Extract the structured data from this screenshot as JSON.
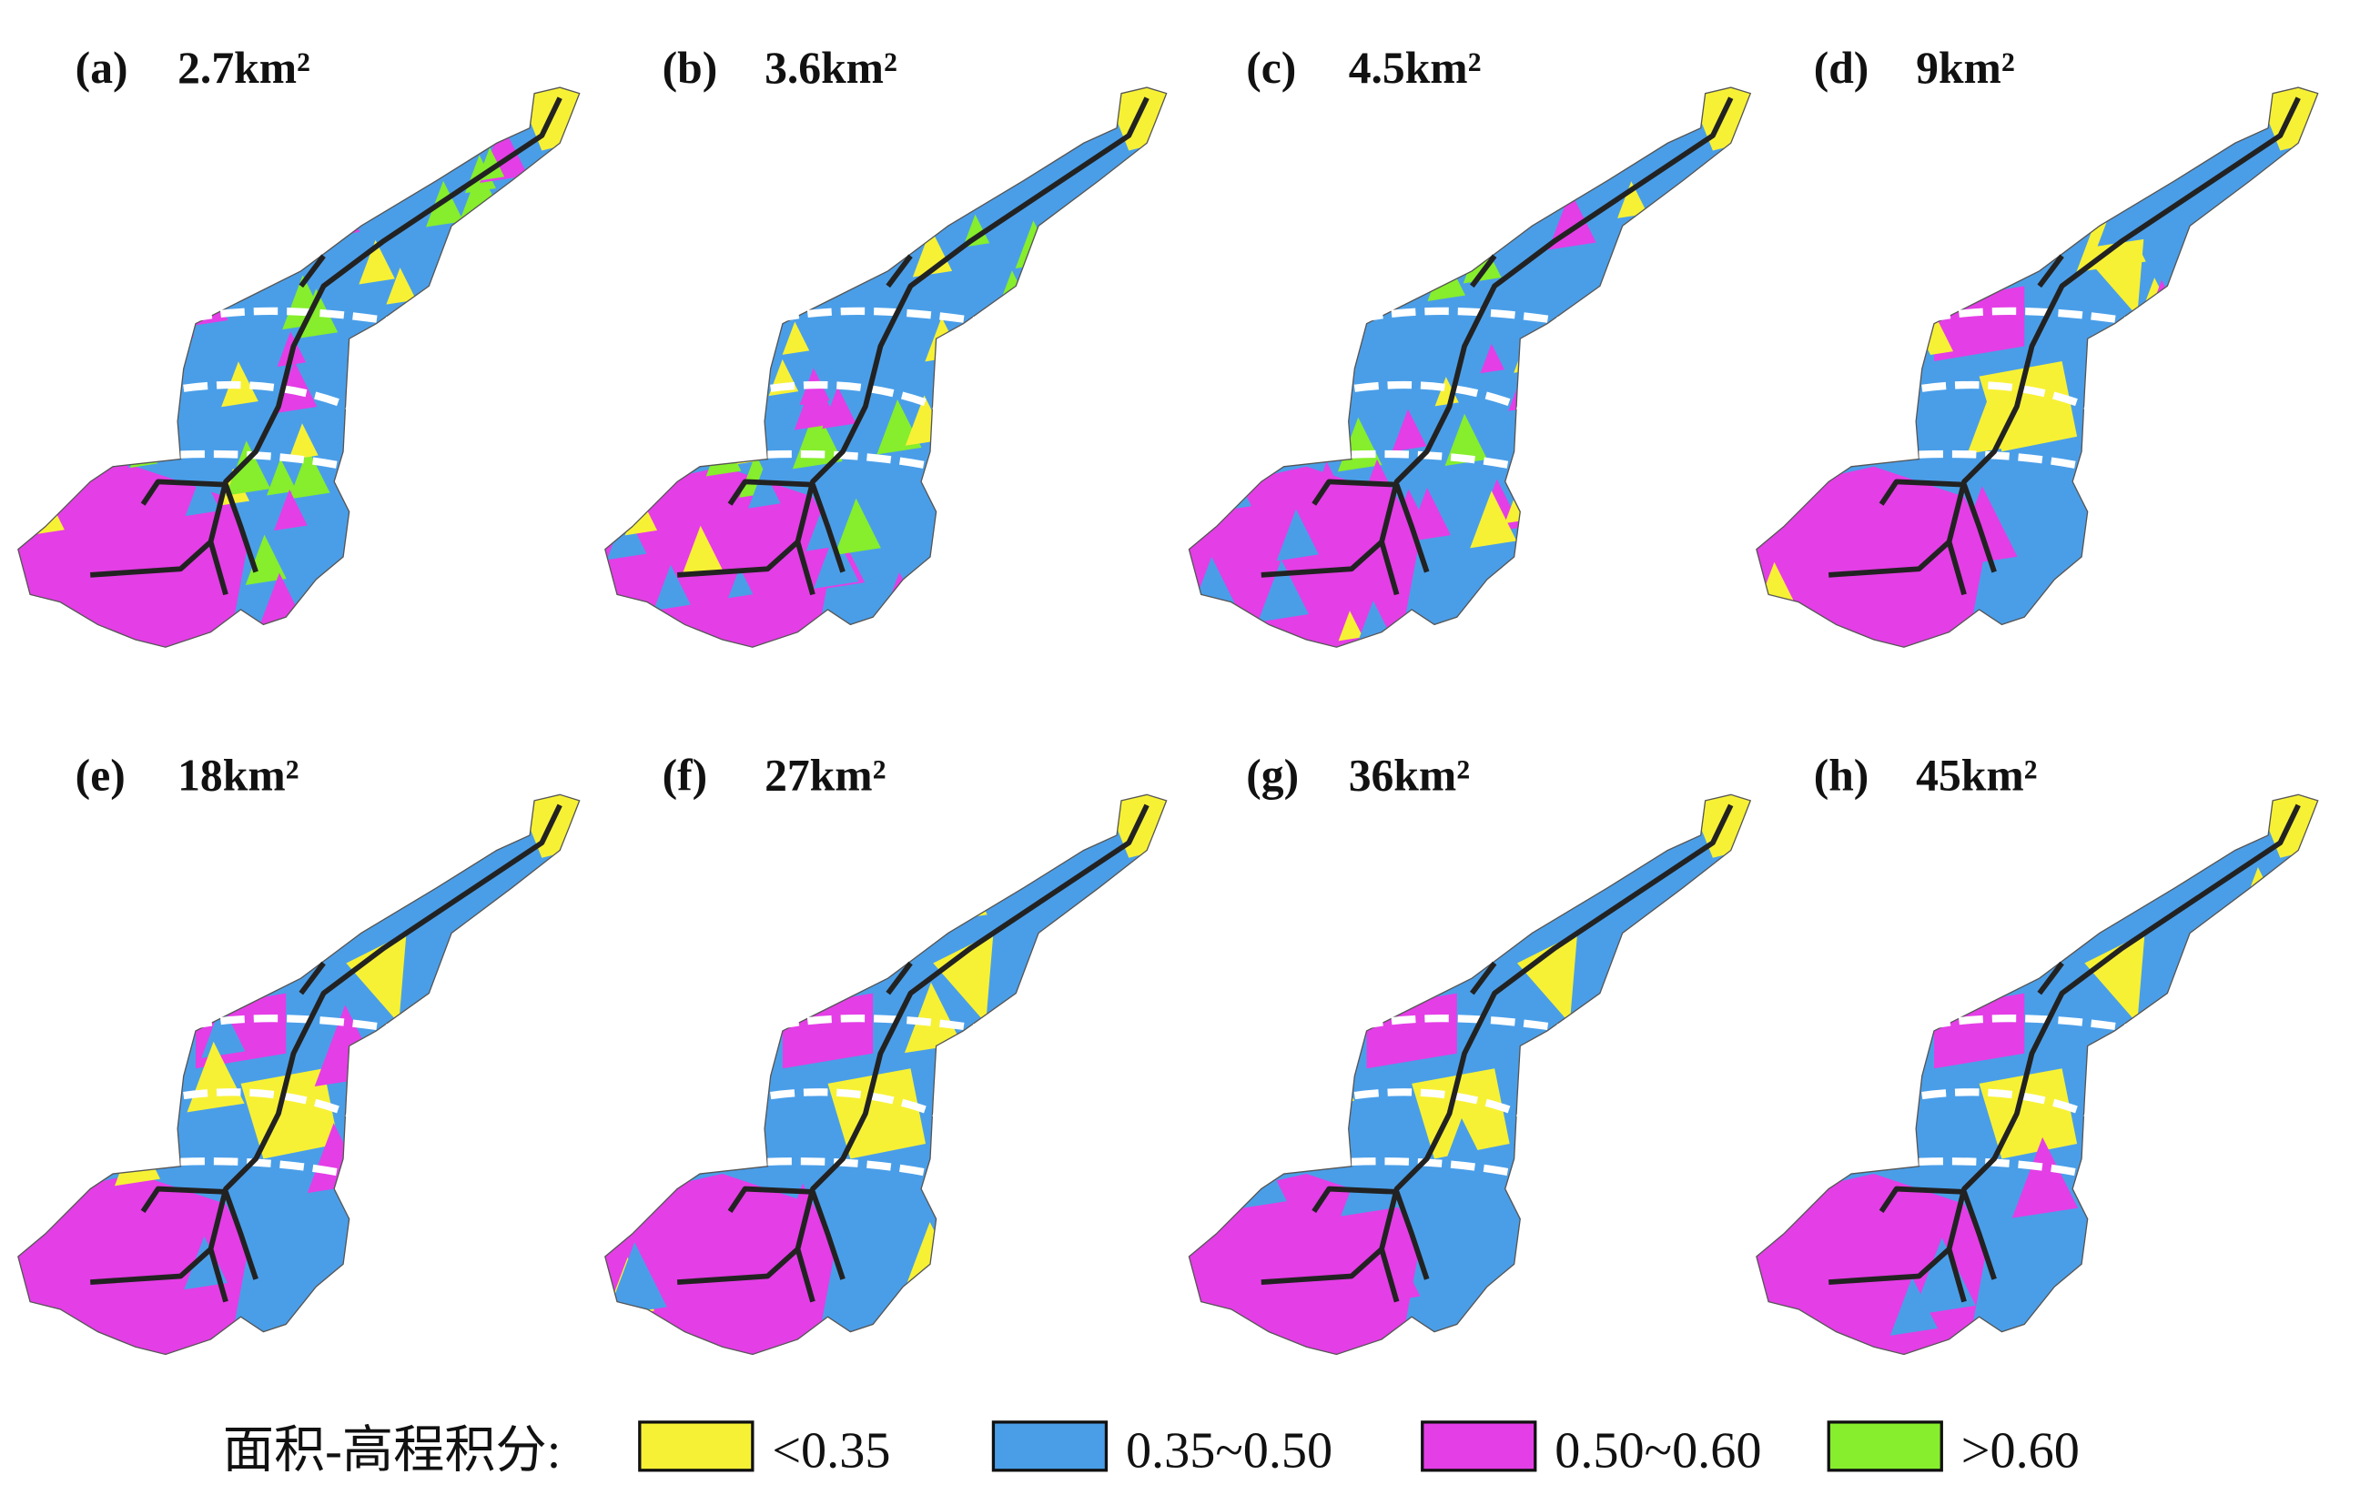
{
  "panels": [
    {
      "label": "(a)",
      "area": "2.7km²"
    },
    {
      "label": "(b)",
      "area": "3.6km²"
    },
    {
      "label": "(c)",
      "area": "4.5km²"
    },
    {
      "label": "(d)",
      "area": "9km²"
    },
    {
      "label": "(e)",
      "area": "18km²"
    },
    {
      "label": "(f)",
      "area": "27km²"
    },
    {
      "label": "(g)",
      "area": "36km²"
    },
    {
      "label": "(h)",
      "area": "45km²"
    }
  ],
  "legend": {
    "title": "面积-高程积分:",
    "items": [
      {
        "label": "<0.35",
        "color": "#f7f135"
      },
      {
        "label": "0.35~0.50",
        "color": "#4a9ee8"
      },
      {
        "label": "0.50~0.60",
        "color": "#e43ee6"
      },
      {
        "label": ">0.60",
        "color": "#86ee2c"
      }
    ]
  }
}
